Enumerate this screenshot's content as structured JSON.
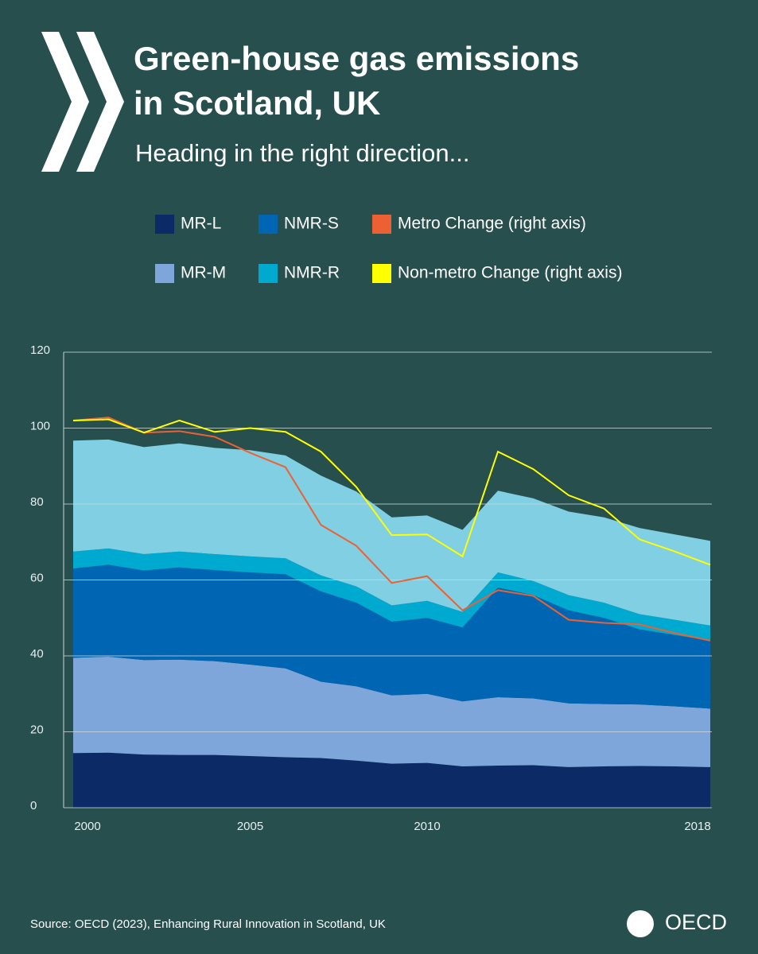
{
  "chart_data": {
    "type": "stacked_area",
    "title": [
      "Green-house gas emissions",
      "in Scotland, UK"
    ],
    "subtitle": "Heading in the right direction...",
    "source": "Source: OECD (2023), Enhancing Rural Innovation in Scotland, UK",
    "logo": "OECD",
    "x": [
      2000,
      2001,
      2002,
      2003,
      2004,
      2005,
      2006,
      2007,
      2008,
      2009,
      2010,
      2011,
      2012,
      2013,
      2014,
      2015,
      2016,
      2017,
      2018
    ],
    "xlim": [
      2000,
      2018
    ],
    "xticks": [
      2000,
      2005,
      2010,
      2018
    ],
    "ylim": [
      0,
      120
    ],
    "yticks": [
      0,
      20,
      40,
      60,
      80,
      100,
      120
    ],
    "grid": true,
    "series": [
      {
        "name": "MR-L",
        "color": "#0b2a66",
        "values": [
          14.4,
          14.5,
          14,
          13.9,
          13.9,
          13.6,
          13.3,
          13.1,
          12.4,
          11.6,
          11.8,
          10.9,
          11.1,
          11.2,
          10.7,
          10.9,
          11,
          10.9,
          10.7
        ]
      },
      {
        "name": "MR-M",
        "color": "#7fa6da",
        "values": [
          25.1,
          25.3,
          24.9,
          25.1,
          24.7,
          24.1,
          23.4,
          20.1,
          19.6,
          18,
          18.2,
          17.1,
          18,
          17.6,
          16.8,
          16.4,
          16.2,
          15.8,
          15.4
        ]
      },
      {
        "name": "NMR-S",
        "color": "#0066b3",
        "values": [
          23.5,
          24.2,
          23.6,
          24.3,
          24,
          24.3,
          24.8,
          23.8,
          22,
          19.4,
          20,
          19.5,
          28.9,
          27.2,
          24.5,
          22.7,
          19.8,
          18.8,
          17.9
        ]
      },
      {
        "name": "NMR-R",
        "color": "#00a9d0",
        "values": [
          4.5,
          4.3,
          4.3,
          4.2,
          4.2,
          4.2,
          4.2,
          4.2,
          4.3,
          4.3,
          4.5,
          4.1,
          4,
          3.7,
          4,
          4,
          4,
          4,
          4
        ]
      },
      {
        "color": "#80cfe2",
        "values": [
          29.2,
          28.7,
          28.2,
          28.5,
          28,
          28,
          27.1,
          26.3,
          25,
          23.2,
          22.5,
          21.6,
          21.5,
          21.8,
          22,
          22.5,
          22.7,
          22.5,
          22.3
        ]
      },
      {
        "name": "Metro Change (right axis)",
        "type": "line",
        "color": "#ec6134",
        "values": [
          102,
          102.8,
          98.8,
          99.2,
          97.7,
          93.5,
          89.7,
          74.5,
          69,
          59.2,
          61,
          52,
          57.3,
          55.8,
          49.5,
          48.7,
          48.3,
          46,
          44
        ]
      },
      {
        "name": "Non-metro Change (right axis)",
        "type": "line",
        "color": "#ffff00",
        "values": [
          102,
          102.3,
          98.8,
          102,
          99,
          100,
          99,
          93.8,
          84.5,
          71.8,
          72,
          66.2,
          93.8,
          89.2,
          82.3,
          78.8,
          70.7,
          67.5,
          64
        ]
      }
    ]
  }
}
